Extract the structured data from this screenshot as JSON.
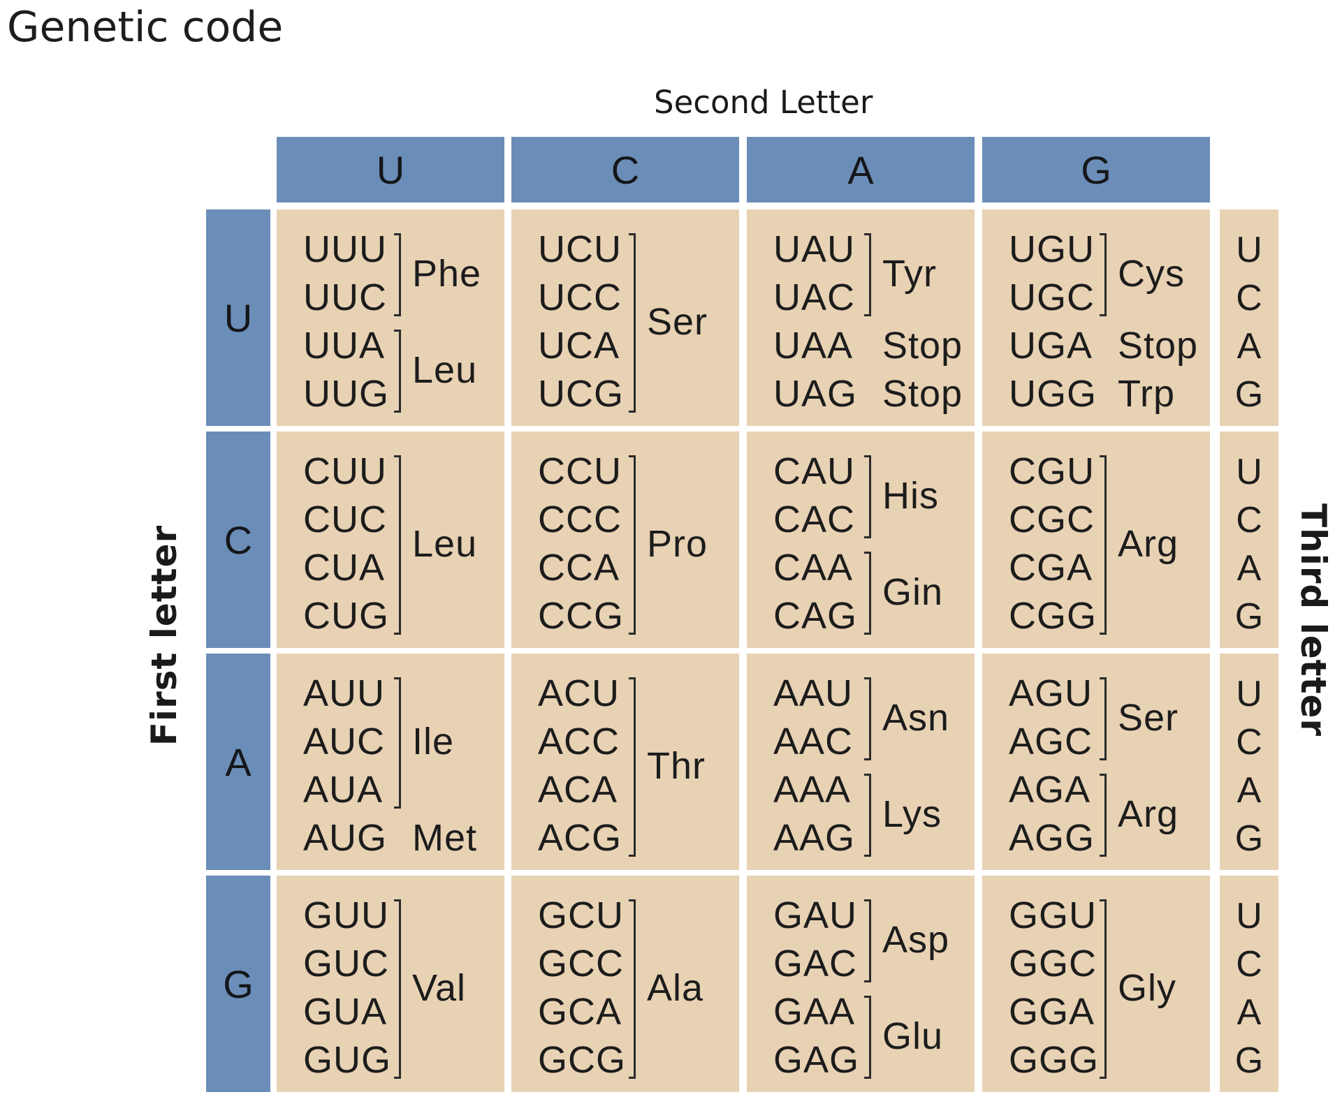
{
  "title": "Genetic code",
  "axis_labels": {
    "second_letter": "Second Letter",
    "first_letter": "First letter",
    "third_letter": "Third letter"
  },
  "second_letters": [
    "U",
    "C",
    "A",
    "G"
  ],
  "first_letters": [
    "U",
    "C",
    "A",
    "G"
  ],
  "third_letters": [
    "U",
    "C",
    "A",
    "G"
  ],
  "codon_table": [
    [
      {
        "codons": [
          "UUU",
          "UUC",
          "UUA",
          "UUG"
        ],
        "groups": [
          {
            "aa": "Phe",
            "codons": [
              0,
              1
            ]
          },
          {
            "aa": "Leu",
            "codons": [
              2,
              3
            ]
          }
        ]
      },
      {
        "codons": [
          "UCU",
          "UCC",
          "UCA",
          "UCG"
        ],
        "groups": [
          {
            "aa": "Ser",
            "codons": [
              0,
              3
            ]
          }
        ]
      },
      {
        "codons": [
          "UAU",
          "UAC",
          "UAA",
          "UAG"
        ],
        "groups": [
          {
            "aa": "Tyr",
            "codons": [
              0,
              1
            ]
          },
          {
            "aa": "Stop",
            "codons": [
              2,
              2
            ]
          },
          {
            "aa": "Stop",
            "codons": [
              3,
              3
            ]
          }
        ]
      },
      {
        "codons": [
          "UGU",
          "UGC",
          "UGA",
          "UGG"
        ],
        "groups": [
          {
            "aa": "Cys",
            "codons": [
              0,
              1
            ]
          },
          {
            "aa": "Stop",
            "codons": [
              2,
              2
            ]
          },
          {
            "aa": "Trp",
            "codons": [
              3,
              3
            ]
          }
        ]
      }
    ],
    [
      {
        "codons": [
          "CUU",
          "CUC",
          "CUA",
          "CUG"
        ],
        "groups": [
          {
            "aa": "Leu",
            "codons": [
              0,
              3
            ]
          }
        ]
      },
      {
        "codons": [
          "CCU",
          "CCC",
          "CCA",
          "CCG"
        ],
        "groups": [
          {
            "aa": "Pro",
            "codons": [
              0,
              3
            ]
          }
        ]
      },
      {
        "codons": [
          "CAU",
          "CAC",
          "CAA",
          "CAG"
        ],
        "groups": [
          {
            "aa": "His",
            "codons": [
              0,
              1
            ]
          },
          {
            "aa": "Gin",
            "codons": [
              2,
              3
            ]
          }
        ]
      },
      {
        "codons": [
          "CGU",
          "CGC",
          "CGA",
          "CGG"
        ],
        "groups": [
          {
            "aa": "Arg",
            "codons": [
              0,
              3
            ]
          }
        ]
      }
    ],
    [
      {
        "codons": [
          "AUU",
          "AUC",
          "AUA",
          "AUG"
        ],
        "groups": [
          {
            "aa": "Ile",
            "codons": [
              0,
              2
            ]
          },
          {
            "aa": "Met",
            "codons": [
              3,
              3
            ]
          }
        ]
      },
      {
        "codons": [
          "ACU",
          "ACC",
          "ACA",
          "ACG"
        ],
        "groups": [
          {
            "aa": "Thr",
            "codons": [
              0,
              3
            ]
          }
        ]
      },
      {
        "codons": [
          "AAU",
          "AAC",
          "AAA",
          "AAG"
        ],
        "groups": [
          {
            "aa": "Asn",
            "codons": [
              0,
              1
            ]
          },
          {
            "aa": "Lys",
            "codons": [
              2,
              3
            ]
          }
        ]
      },
      {
        "codons": [
          "AGU",
          "AGC",
          "AGA",
          "AGG"
        ],
        "groups": [
          {
            "aa": "Ser",
            "codons": [
              0,
              1
            ]
          },
          {
            "aa": "Arg",
            "codons": [
              2,
              3
            ]
          }
        ]
      }
    ],
    [
      {
        "codons": [
          "GUU",
          "GUC",
          "GUA",
          "GUG"
        ],
        "groups": [
          {
            "aa": "Val",
            "codons": [
              0,
              3
            ]
          }
        ]
      },
      {
        "codons": [
          "GCU",
          "GCC",
          "GCA",
          "GCG"
        ],
        "groups": [
          {
            "aa": "Ala",
            "codons": [
              0,
              3
            ]
          }
        ]
      },
      {
        "codons": [
          "GAU",
          "GAC",
          "GAA",
          "GAG"
        ],
        "groups": [
          {
            "aa": "Asp",
            "codons": [
              0,
              1
            ]
          },
          {
            "aa": "Glu",
            "codons": [
              2,
              3
            ]
          }
        ]
      },
      {
        "codons": [
          "GGU",
          "GGC",
          "GGA",
          "GGG"
        ],
        "groups": [
          {
            "aa": "Gly",
            "codons": [
              0,
              3
            ]
          }
        ]
      }
    ]
  ],
  "colors": {
    "header_blue": "#6b8eb8",
    "cell_tan": "#e8d2b4"
  }
}
